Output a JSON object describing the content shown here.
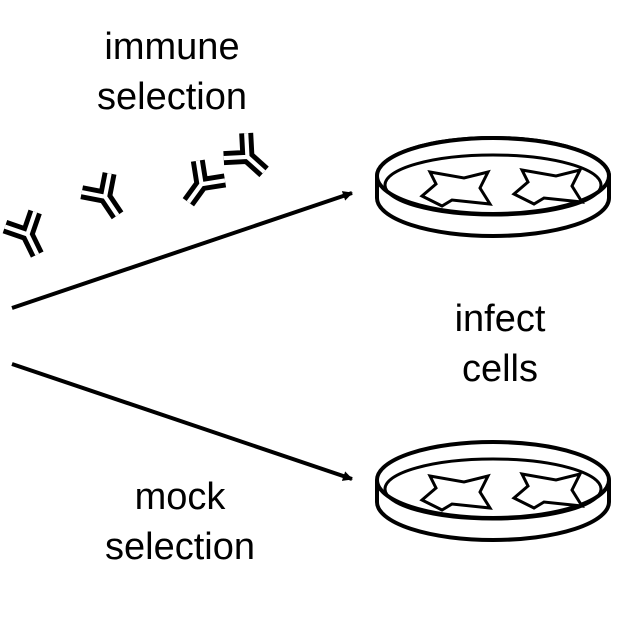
{
  "labels": {
    "immune_selection": [
      "immune",
      "selection"
    ],
    "infect_cells": [
      "infect",
      "cells"
    ],
    "mock_selection": [
      "mock",
      "selection"
    ]
  },
  "icons": {
    "antibody": "antibody-icon",
    "dish": "petri-dish-icon",
    "cell": "cell-icon",
    "arrow": "arrow-icon"
  },
  "colors": {
    "stroke": "#000000",
    "background": "#ffffff"
  }
}
